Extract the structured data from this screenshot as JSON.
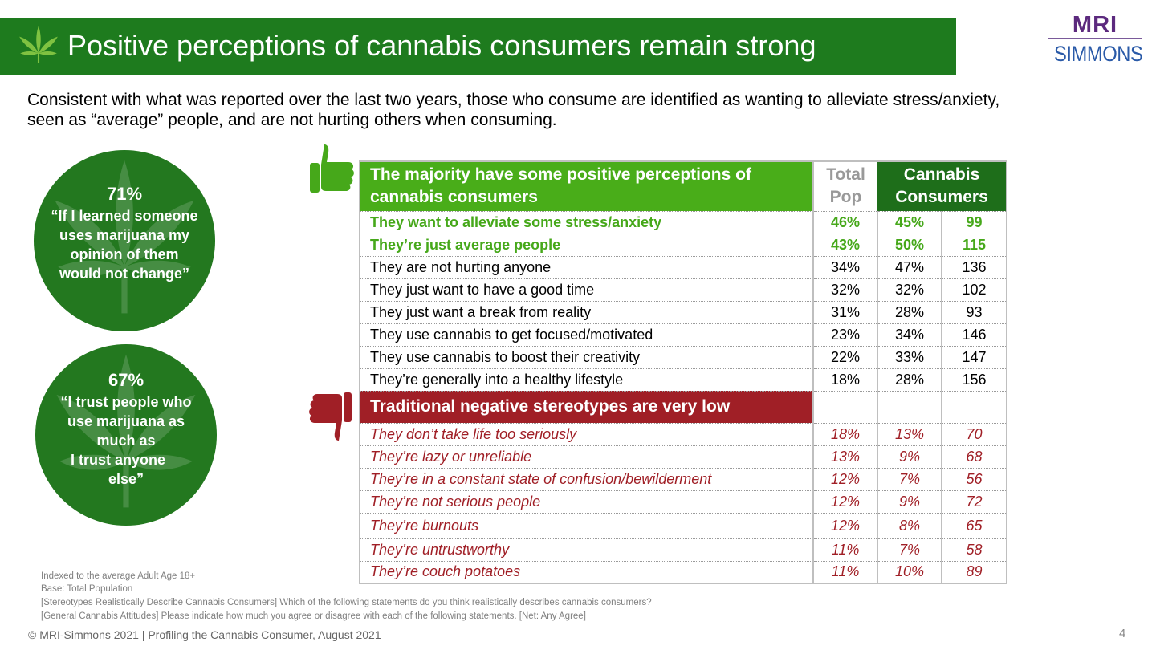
{
  "header": {
    "title": "Positive perceptions of cannabis consumers remain strong",
    "bar_color": "#1e7b1e"
  },
  "logo": {
    "line1": "MRI",
    "line2": "SIMMONS"
  },
  "subtitle": "Consistent with what was reported over the last two years, those who consume are identified as wanting to alleviate stress/anxiety, seen as “average” people, and are not hurting others when consuming.",
  "callouts": [
    {
      "pct": "71%",
      "lines": [
        "“If I learned someone",
        "uses marijuana my",
        "opinion of them",
        "would not change”"
      ]
    },
    {
      "pct": "67%",
      "lines": [
        "“I trust people who",
        "use marijuana as",
        "much as",
        "I trust anyone",
        "else”"
      ]
    }
  ],
  "table": {
    "header_positive": "The majority have some positive perceptions of cannabis consumers",
    "col_total": "Total Pop",
    "col_cannabis": "Cannabis Consumers",
    "positive_rows": [
      {
        "label": "They want to alleviate some stress/anxiety",
        "total": "46%",
        "cons": "45%",
        "index": "99",
        "highlight": true
      },
      {
        "label": "They’re just average people",
        "total": "43%",
        "cons": "50%",
        "index": "115",
        "highlight": true
      },
      {
        "label": "They are not hurting anyone",
        "total": "34%",
        "cons": "47%",
        "index": "136",
        "highlight": false
      },
      {
        "label": "They just want to have a good time",
        "total": "32%",
        "cons": "32%",
        "index": "102",
        "highlight": false
      },
      {
        "label": "They just want a break from reality",
        "total": "31%",
        "cons": "28%",
        "index": "93",
        "highlight": false
      },
      {
        "label": "They use cannabis to get focused/motivated",
        "total": "23%",
        "cons": "34%",
        "index": "146",
        "highlight": false
      },
      {
        "label": "They use cannabis to boost their creativity",
        "total": "22%",
        "cons": "33%",
        "index": "147",
        "highlight": false
      },
      {
        "label": "They’re generally into a healthy lifestyle",
        "total": "18%",
        "cons": "28%",
        "index": "156",
        "highlight": false
      }
    ],
    "header_negative": "Traditional negative stereotypes are very low",
    "negative_rows": [
      {
        "label": "They don’t take life too seriously",
        "total": "18%",
        "cons": "13%",
        "index": "70"
      },
      {
        "label": "They’re lazy or unreliable",
        "total": "13%",
        "cons": "9%",
        "index": "68"
      },
      {
        "label": "They’re in a constant state of confusion/bewilderment",
        "total": "12%",
        "cons": "7%",
        "index": "56"
      },
      {
        "label": "They’re not serious people",
        "total": "12%",
        "cons": "9%",
        "index": "72"
      },
      {
        "label": "They’re burnouts",
        "total": "12%",
        "cons": "8%",
        "index": "65"
      },
      {
        "label": "They’re untrustworthy",
        "total": "11%",
        "cons": "7%",
        "index": "58"
      },
      {
        "label": "They’re couch potatoes",
        "total": "11%",
        "cons": "10%",
        "index": "89"
      }
    ]
  },
  "footnotes": [
    "Indexed to the average Adult Age 18+",
    "Base: Total Population",
    "[Stereotypes Realistically Describe Cannabis Consumers] Which of the following statements do you think realistically describes cannabis consumers?",
    "[General Cannabis Attitudes] Please indicate how much you agree or disagree with each of the following statements. [Net: Any Agree]"
  ],
  "copyright": "©  MRI-Simmons 2021  |  Profiling the Cannabis Consumer, August 2021",
  "page_number": "4",
  "colors": {
    "positive_green": "#46a81a",
    "header_green": "#49ad19",
    "dark_green": "#1e6e1a",
    "negative_red": "#a01f26"
  }
}
